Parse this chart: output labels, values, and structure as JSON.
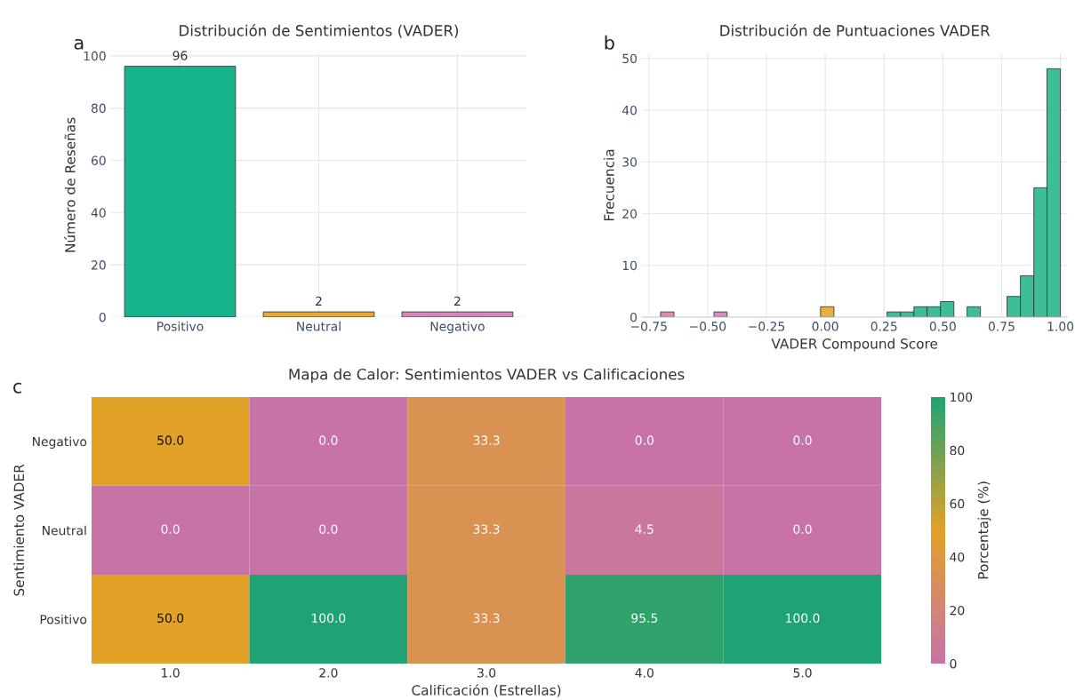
{
  "chart_data": [
    {
      "type": "bar",
      "title": "Distribución de Sentimientos (VADER)",
      "ylabel": "Número de Reseñas",
      "annotations": [
        "a"
      ],
      "categories": [
        "Positivo",
        "Neutral",
        "Negativo"
      ],
      "values": [
        96,
        2,
        2
      ],
      "colors": [
        "#17b38c",
        "#e9a830",
        "#d685bd"
      ],
      "data_labels": true,
      "ylim": [
        0,
        101
      ],
      "yticks": [
        0,
        20,
        40,
        60,
        80,
        100
      ],
      "grid": true
    },
    {
      "type": "histogram",
      "title": "Distribución de Puntuaciones VADER",
      "xlabel": "VADER Compound Score",
      "ylabel": "Frecuencia",
      "annotations": [
        "b"
      ],
      "bins": [
        -0.7,
        -0.643,
        -0.587,
        -0.53,
        -0.473,
        -0.417,
        -0.36,
        -0.303,
        -0.247,
        -0.19,
        -0.133,
        -0.077,
        -0.02,
        0.037,
        0.093,
        0.15,
        0.207,
        0.263,
        0.32,
        0.377,
        0.433,
        0.49,
        0.547,
        0.603,
        0.66,
        0.717,
        0.773,
        0.83,
        0.887,
        0.943,
        1.0
      ],
      "values": [
        1,
        0,
        0,
        0,
        1,
        0,
        0,
        0,
        0,
        0,
        0,
        0,
        2,
        0,
        0,
        0,
        0,
        1,
        1,
        2,
        2,
        3,
        0,
        2,
        0,
        0,
        4,
        8,
        25,
        48
      ],
      "colors": [
        "#d98cc0",
        "#d98cc0",
        "#d98cc0",
        "#d98cc0",
        "#d98cc0",
        "#d98cc0",
        "#d98cc0",
        "#d98cc0",
        "#d98cc0",
        "#d98cc0",
        "#d98cc0",
        "#d98cc0",
        "#e8b03e",
        "#3dbd98",
        "#3dbd98",
        "#3dbd98",
        "#3dbd98",
        "#3dbd98",
        "#3dbd98",
        "#3dbd98",
        "#3dbd98",
        "#3dbd98",
        "#3dbd98",
        "#3dbd98",
        "#3dbd98",
        "#3dbd98",
        "#3dbd98",
        "#3dbd98",
        "#3dbd98",
        "#3dbd98"
      ],
      "xlim": [
        -0.78,
        1.03
      ],
      "xticks": [
        {
          "value": -0.75,
          "label": "−0.75"
        },
        {
          "value": -0.5,
          "label": "−0.50"
        },
        {
          "value": -0.25,
          "label": "−0.25"
        },
        {
          "value": 0,
          "label": "0.00"
        },
        {
          "value": 0.25,
          "label": "0.25"
        },
        {
          "value": 0.5,
          "label": "0.50"
        },
        {
          "value": 0.75,
          "label": "0.75"
        },
        {
          "value": 1,
          "label": "1.00"
        }
      ],
      "ylim": [
        0,
        51
      ],
      "yticks": [
        0,
        10,
        20,
        30,
        40,
        50
      ],
      "grid": true
    },
    {
      "type": "heatmap",
      "title": "Mapa de Calor: Sentimientos VADER vs Calificaciones",
      "xlabel": "Calificación (Estrellas)",
      "ylabel": "Sentimiento VADER",
      "clabel": "Porcentaje (%)",
      "annotations": [
        "c"
      ],
      "categories": [
        "1.0",
        "2.0",
        "3.0",
        "4.0",
        "5.0"
      ],
      "y_categories": [
        "Negativo",
        "Neutral",
        "Positivo"
      ],
      "cells": [
        [
          50.0,
          0.0,
          33.3,
          0.0,
          0.0
        ],
        [
          0.0,
          0.0,
          33.3,
          4.5,
          0.0
        ],
        [
          50.0,
          100.0,
          33.3,
          95.5,
          100.0
        ]
      ],
      "cell_labels": [
        [
          "50.0",
          "0.0",
          "33.3",
          "0.0",
          "0.0"
        ],
        [
          "0.0",
          "0.0",
          "33.3",
          "4.5",
          "0.0"
        ],
        [
          "50.0",
          "100.0",
          "33.3",
          "95.5",
          "100.0"
        ]
      ],
      "data_labels": true,
      "clim": [
        0,
        100
      ],
      "cticks": [
        0,
        20,
        40,
        60,
        80,
        100
      ]
    }
  ]
}
